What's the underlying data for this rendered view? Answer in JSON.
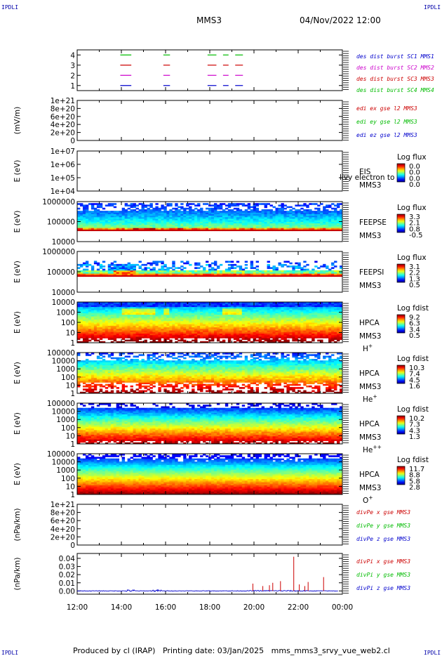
{
  "header": {
    "title": "MMS3",
    "datetime": "04/Nov/2022 12:00",
    "corner_left": "IPDLI",
    "corner_right": "IPDLI"
  },
  "footer": {
    "produced_by": "Produced by cl (IRAP)",
    "printing_date": "Printing date: 03/Jan/2025",
    "script": "mms_mms3_srvy_vue_web2.cl"
  },
  "x_ticks": [
    "12:00",
    "14:00",
    "16:00",
    "18:00",
    "20:00",
    "22:00",
    "00:00"
  ],
  "chart_data": [
    {
      "type": "timeline",
      "name": "burst",
      "ylim": [
        0.5,
        4.5
      ],
      "yticks": [
        "1",
        "2",
        "3",
        "4"
      ],
      "ytick_values": [
        1,
        2,
        3,
        4
      ],
      "legend": [
        {
          "label": "des dist burst SC1 MMS1",
          "color": "#0000cc"
        },
        {
          "label": "des dist burst SC2 MMS2",
          "color": "#cc00cc"
        },
        {
          "label": "des dist burst SC3 MMS3",
          "color": "#cc0000"
        },
        {
          "label": "des dist burst SC4 MMS4",
          "color": "#00bb00"
        }
      ],
      "segments": [
        {
          "level": 1,
          "color": "#0000cc",
          "spans": [
            [
              13.95,
              14.45
            ],
            [
              15.9,
              16.2
            ],
            [
              17.9,
              18.3
            ],
            [
              18.6,
              18.85
            ],
            [
              19.15,
              19.5
            ]
          ]
        },
        {
          "level": 2,
          "color": "#cc00cc",
          "spans": [
            [
              13.95,
              14.45
            ],
            [
              15.9,
              16.2
            ],
            [
              17.9,
              18.3
            ],
            [
              18.6,
              18.85
            ],
            [
              19.15,
              19.5
            ]
          ]
        },
        {
          "level": 3,
          "color": "#cc0000",
          "spans": [
            [
              13.95,
              14.45
            ],
            [
              15.9,
              16.2
            ],
            [
              17.9,
              18.3
            ],
            [
              18.6,
              18.85
            ],
            [
              19.15,
              19.5
            ]
          ]
        },
        {
          "level": 4,
          "color": "#00bb00",
          "spans": [
            [
              13.95,
              14.45
            ],
            [
              15.9,
              16.2
            ],
            [
              17.9,
              18.3
            ],
            [
              18.6,
              18.85
            ],
            [
              19.15,
              19.5
            ]
          ]
        }
      ]
    },
    {
      "type": "line",
      "name": "edi-e-field",
      "ylabel": "(mV/m)",
      "ylim": [
        0,
        1e+21
      ],
      "yticks": [
        "0",
        "2e+20",
        "4e+20",
        "6e+20",
        "8e+20",
        "1e+21"
      ],
      "ytick_values": [
        0,
        2e+20,
        4e+20,
        6e+20,
        8e+20,
        1e+21
      ],
      "legend": [
        {
          "label": "edi ex gse l2 MMS3",
          "color": "#cc0000"
        },
        {
          "label": "edi ey gse l2 MMS3",
          "color": "#00bb00"
        },
        {
          "label": "edi ez gse l2 MMS3",
          "color": "#0000cc"
        }
      ],
      "zero_line": true
    },
    {
      "type": "heatmap",
      "name": "eis",
      "ylabel": "E (eV)",
      "log": true,
      "ylim": [
        10000.0,
        10000000.0
      ],
      "yticks": [
        "1e+04",
        "1e+05",
        "1e+06",
        "1e+07"
      ],
      "ytick_values": [
        10000.0,
        100000.0,
        1000000.0,
        10000000.0
      ],
      "instrument": [
        "EIS",
        "MMS3"
      ],
      "overlay_text": "livy electron to",
      "colorbar": {
        "title": "Log flux",
        "ticks": [
          "0.0",
          "0.0",
          "0.0",
          "0.0"
        ]
      },
      "empty": true
    },
    {
      "type": "heatmap",
      "name": "feeps-electron",
      "ylabel": "E (eV)",
      "log": true,
      "ylim": [
        10000.0,
        1000000.0
      ],
      "yticks": [
        "10000",
        "100000",
        "1000000"
      ],
      "ytick_values": [
        10000.0,
        100000.0,
        1000000.0
      ],
      "instrument": [
        "FEEPSE",
        "MMS3"
      ],
      "colorbar": {
        "title": "Log flux",
        "ticks": [
          "3.3",
          "2.1",
          "0.8",
          "-0.5"
        ]
      },
      "data_range_log": [
        4.55,
        6.0
      ]
    },
    {
      "type": "heatmap",
      "name": "feeps-ion",
      "ylabel": "E (eV)",
      "log": true,
      "ylim": [
        10000.0,
        1000000.0
      ],
      "yticks": [
        "10000",
        "100000",
        "1000000"
      ],
      "ytick_values": [
        10000.0,
        100000.0,
        1000000.0
      ],
      "instrument": [
        "FEEPSI",
        "MMS3"
      ],
      "colorbar": {
        "title": "Log flux",
        "ticks": [
          "3.1",
          "2.2",
          "1.3",
          "0.5"
        ]
      },
      "data_range_log": [
        4.8,
        5.5
      ]
    },
    {
      "type": "heatmap",
      "name": "hpca-h-plus",
      "ylabel": "E (eV)",
      "log": true,
      "ylim": [
        1,
        10000.0
      ],
      "yticks": [
        "1",
        "10",
        "100",
        "1000",
        "10000"
      ],
      "ytick_values": [
        1,
        10,
        100,
        1000,
        10000
      ],
      "instrument": [
        "HPCA",
        "MMS3"
      ],
      "species": "H",
      "charge": "+",
      "colorbar": {
        "title": "Log fdist",
        "ticks": [
          "9.2",
          "6.3",
          "3.4",
          "0.5"
        ]
      }
    },
    {
      "type": "heatmap",
      "name": "hpca-he-plus",
      "ylabel": "E (eV)",
      "log": true,
      "ylim": [
        1,
        100000.0
      ],
      "yticks": [
        "1",
        "10",
        "100",
        "1000",
        "10000",
        "100000"
      ],
      "ytick_values": [
        1,
        10,
        100,
        1000,
        10000,
        100000
      ],
      "instrument": [
        "HPCA",
        "MMS3"
      ],
      "species": "He",
      "charge": "+",
      "colorbar": {
        "title": "Log fdist",
        "ticks": [
          "10.3",
          "7.4",
          "4.5",
          "1.6"
        ]
      }
    },
    {
      "type": "heatmap",
      "name": "hpca-he-plus-plus",
      "ylabel": "E (eV)",
      "log": true,
      "ylim": [
        1,
        100000.0
      ],
      "yticks": [
        "1",
        "10",
        "100",
        "1000",
        "10000",
        "100000"
      ],
      "ytick_values": [
        1,
        10,
        100,
        1000,
        10000,
        100000
      ],
      "instrument": [
        "HPCA",
        "MMS3"
      ],
      "species": "He",
      "charge": "++",
      "colorbar": {
        "title": "Log fdist",
        "ticks": [
          "10.2",
          "7.3",
          "4.3",
          "1.3"
        ]
      }
    },
    {
      "type": "heatmap",
      "name": "hpca-o-plus",
      "ylabel": "E (eV)",
      "log": true,
      "ylim": [
        1,
        100000.0
      ],
      "yticks": [
        "1",
        "10",
        "100",
        "1000",
        "10000",
        "100000"
      ],
      "ytick_values": [
        1,
        10,
        100,
        1000,
        10000,
        100000
      ],
      "instrument": [
        "HPCA",
        "MMS3"
      ],
      "species": "O",
      "charge": "+",
      "colorbar": {
        "title": "Log fdist",
        "ticks": [
          "11.7",
          "8.8",
          "5.8",
          "2.8"
        ]
      }
    },
    {
      "type": "line",
      "name": "divpe",
      "ylabel": "(nPa/km)",
      "ylim": [
        0,
        1e+21
      ],
      "yticks": [
        "0",
        "2e+20",
        "4e+20",
        "6e+20",
        "8e+20",
        "1e+21"
      ],
      "ytick_values": [
        0,
        2e+20,
        4e+20,
        6e+20,
        8e+20,
        1e+21
      ],
      "legend": [
        {
          "label": "divPe x gse MMS3",
          "color": "#cc0000"
        },
        {
          "label": "divPe y gse MMS3",
          "color": "#00bb00"
        },
        {
          "label": "divPe z gse MMS3",
          "color": "#0000cc"
        }
      ],
      "zero_line": true
    },
    {
      "type": "line",
      "name": "divpi",
      "ylabel": "(nPa/km)",
      "ylim": [
        -0.004,
        0.046
      ],
      "yticks": [
        "0.00",
        "0.01",
        "0.02",
        "0.03",
        "0.04"
      ],
      "ytick_values": [
        0,
        0.01,
        0.02,
        0.03,
        0.04
      ],
      "legend": [
        {
          "label": "divPi x gse MMS3",
          "color": "#cc0000"
        },
        {
          "label": "divPi y gse MMS3",
          "color": "#00bb00"
        },
        {
          "label": "divPi z gse MMS3",
          "color": "#0000cc"
        }
      ],
      "spikes": [
        {
          "t": 19.95,
          "v": 0.009,
          "color": "#cc0000"
        },
        {
          "t": 20.4,
          "v": 0.006,
          "color": "#cc0000"
        },
        {
          "t": 20.7,
          "v": 0.007,
          "color": "#cc0000"
        },
        {
          "t": 20.85,
          "v": 0.01,
          "color": "#cc0000"
        },
        {
          "t": 21.2,
          "v": 0.012,
          "color": "#cc0000"
        },
        {
          "t": 21.8,
          "v": 0.042,
          "color": "#cc0000"
        },
        {
          "t": 22.05,
          "v": 0.008,
          "color": "#cc0000"
        },
        {
          "t": 22.3,
          "v": 0.006,
          "color": "#cc0000"
        },
        {
          "t": 22.45,
          "v": 0.011,
          "color": "#cc0000"
        },
        {
          "t": 23.15,
          "v": 0.017,
          "color": "#cc0000"
        }
      ]
    }
  ]
}
